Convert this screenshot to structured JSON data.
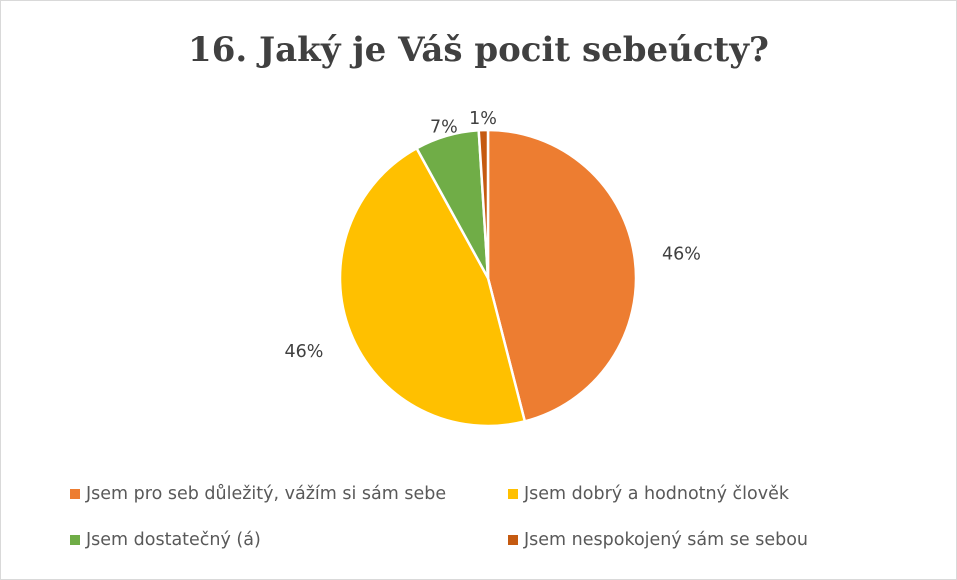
{
  "chart_data": {
    "type": "pie",
    "title": "16. Jaký je Váš pocit sebeúcty?",
    "slices": [
      {
        "label": "Jsem pro seb důležitý, vážím si sám sebe",
        "value": 46,
        "display": "46%",
        "color": "#ED7D31"
      },
      {
        "label": "Jsem dobrý a hodnotný člověk",
        "value": 46,
        "display": "46%",
        "color": "#FFC000"
      },
      {
        "label": "Jsem dostatečný (á)",
        "value": 7,
        "display": "7%",
        "color": "#70AD47"
      },
      {
        "label": "Jsem nespokojený sám se sebou",
        "value": 1,
        "display": "1%",
        "color": "#C55A11"
      }
    ],
    "legend_position": "bottom"
  }
}
